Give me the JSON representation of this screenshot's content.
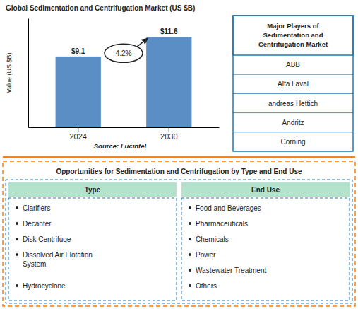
{
  "chart_data": {
    "type": "bar",
    "title": "Global Sedimentation and Centrifugation Market (US $B)",
    "categories": [
      "2024",
      "2030"
    ],
    "values": [
      9.1,
      11.6
    ],
    "value_labels": [
      "$9.1",
      "$11.6"
    ],
    "data_labels": true,
    "color": "#5b8ec4",
    "ylabel": "Value (US $B)",
    "ylim": [
      0,
      14
    ],
    "tick_labels": "x",
    "annotations": [
      "4.2%",
      "Source: Lucintel"
    ],
    "major_players": {
      "title": "Major Players of\nSedimentation and\nCentrifugation Market",
      "items": [
        "ABB",
        "Alfa Laval",
        "andreas Hettich",
        "Andritz",
        "Corning"
      ]
    },
    "opportunities": {
      "title": "Opportunities for Sedimentation and Centrifugation by Type and End Use",
      "columns": [
        {
          "header": "Type",
          "items": [
            "Clarifiers",
            "Decanter",
            "Disk Centrifuge",
            "Dissolved Air Flotation\n  System",
            "Hydrocyclone"
          ]
        },
        {
          "header": "End Use",
          "items": [
            "Food and Beverages",
            "Pharmaceuticals",
            "Chemicals",
            "Power",
            "Wastewater Treatment",
            "Others"
          ]
        }
      ]
    }
  }
}
